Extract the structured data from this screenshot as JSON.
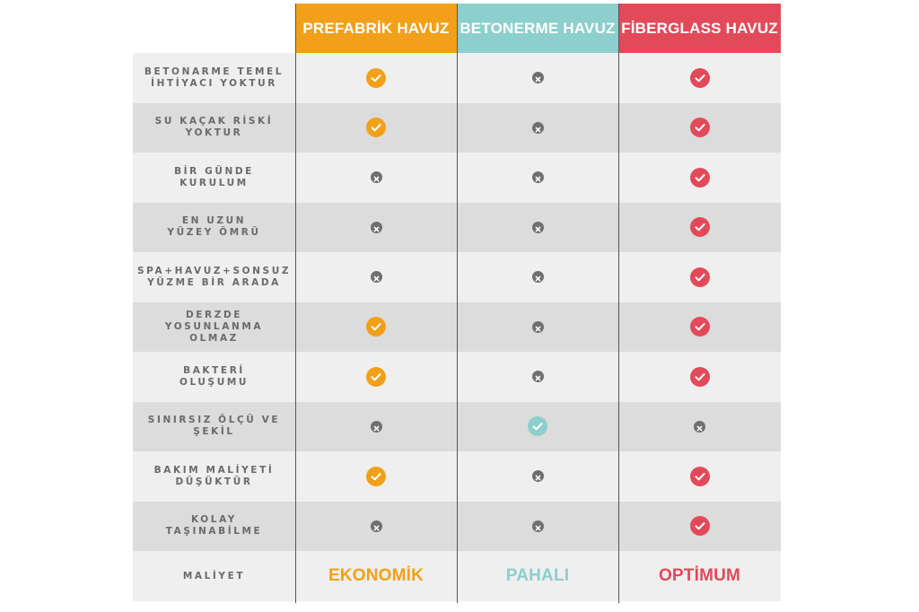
{
  "headers": [
    {
      "label": "PREFABRİK HAVUZ",
      "color": "#f2a01a"
    },
    {
      "label": "BETONERME HAVUZ",
      "color": "#8ccfcc"
    },
    {
      "label": "FİBERGLASS HAVUZ",
      "color": "#e24a5a"
    }
  ],
  "rows": [
    {
      "label": "BETONARME TEMEL\nİHTİYACI YOKTUR",
      "prefabrik": "check",
      "betonerme": "cross",
      "fiberglass": "check"
    },
    {
      "label": "SU KAÇAK RİSKİ\nYOKTUR",
      "prefabrik": "check",
      "betonerme": "cross",
      "fiberglass": "check"
    },
    {
      "label": "BİR GÜNDE\nKURULUM",
      "prefabrik": "cross",
      "betonerme": "cross",
      "fiberglass": "check"
    },
    {
      "label": "EN UZUN\nYÜZEY ÖMRÜ",
      "prefabrik": "cross",
      "betonerme": "cross",
      "fiberglass": "check"
    },
    {
      "label": "SPA+HAVUZ+SONSUZ\nYÜZME BİR ARADA",
      "prefabrik": "cross",
      "betonerme": "cross",
      "fiberglass": "check"
    },
    {
      "label": "DERZDE\nYOSUNLANMA OLMAZ",
      "prefabrik": "check",
      "betonerme": "cross",
      "fiberglass": "check"
    },
    {
      "label": "BAKTERİ\nOLUŞUMU",
      "prefabrik": "check",
      "betonerme": "cross",
      "fiberglass": "check"
    },
    {
      "label": "SINIRSIZ ÖLÇÜ VE\nŞEKİL",
      "prefabrik": "cross",
      "betonerme": "check",
      "fiberglass": "cross"
    },
    {
      "label": "BAKIM MALİYETİ\nDÜŞÜKTÜR",
      "prefabrik": "check",
      "betonerme": "cross",
      "fiberglass": "check"
    },
    {
      "label": "KOLAY\nTAŞINABİLME",
      "prefabrik": "cross",
      "betonerme": "cross",
      "fiberglass": "check"
    }
  ],
  "footer": {
    "label": "MALİYET",
    "prefabrik": "EKONOMİK",
    "betonerme": "PAHALI",
    "fiberglass": "OPTİMUM"
  },
  "colors": {
    "prefabrik": "#f2a01a",
    "betonerme": "#8ccfcc",
    "fiberglass": "#e24a5a",
    "cross": "#6f6f6f",
    "label_text": "#6a6a6a"
  },
  "icons": {
    "check": "check-circle-icon",
    "cross": "x-circle-icon"
  }
}
